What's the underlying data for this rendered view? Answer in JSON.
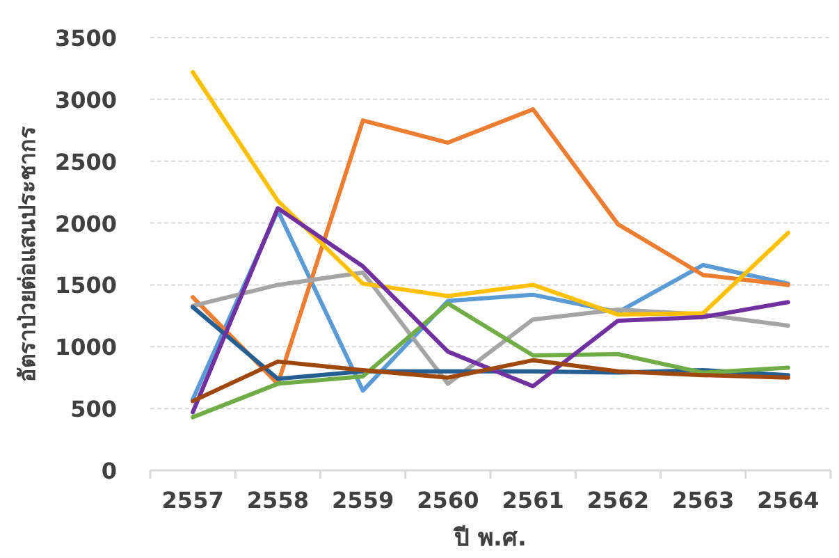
{
  "chart_data": {
    "type": "line",
    "ylabel": "อัตราป่วยต่อแสนประชากร",
    "xlabel": "ปี พ.ศ.",
    "categories": [
      "2557",
      "2558",
      "2559",
      "2560",
      "2561",
      "2562",
      "2563",
      "2564"
    ],
    "ylim": [
      0,
      3500
    ],
    "yticks": [
      0,
      500,
      1000,
      1500,
      2000,
      2500,
      3000,
      3500
    ],
    "grid": "y",
    "series": [
      {
        "color": "#5b9bd5",
        "values": [
          575,
          2100,
          645,
          1370,
          1420,
          1280,
          1660,
          1510
        ]
      },
      {
        "color": "#ed7d31",
        "values": [
          1400,
          700,
          2830,
          2650,
          2920,
          1990,
          1580,
          1500
        ]
      },
      {
        "color": "#a5a5a5",
        "values": [
          1330,
          1500,
          1600,
          700,
          1220,
          1300,
          1260,
          1170
        ]
      },
      {
        "color": "#ffc000",
        "values": [
          3220,
          2180,
          1510,
          1410,
          1500,
          1260,
          1270,
          1920
        ]
      },
      {
        "color": "#255e91",
        "values": [
          1320,
          740,
          800,
          800,
          800,
          790,
          810,
          770
        ]
      },
      {
        "color": "#70ad47",
        "values": [
          430,
          700,
          760,
          1350,
          930,
          940,
          790,
          830
        ]
      },
      {
        "color": "#7030a0",
        "values": [
          470,
          2120,
          1650,
          960,
          680,
          1210,
          1240,
          1360
        ]
      },
      {
        "color": "#9e480e",
        "values": [
          560,
          880,
          810,
          750,
          890,
          800,
          770,
          750
        ]
      }
    ]
  }
}
